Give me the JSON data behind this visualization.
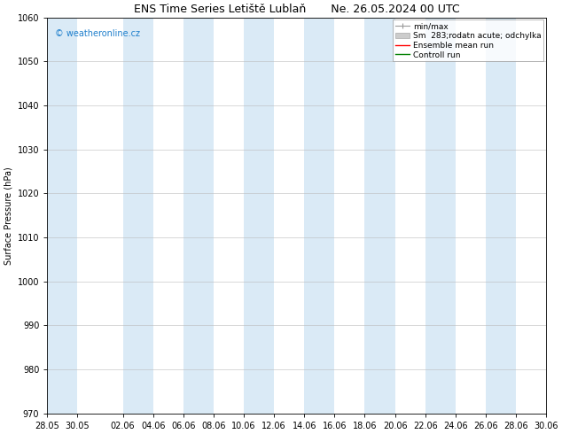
{
  "title": "ENS Time Series Letiště Lublaň       Ne. 26.05.2024 00 UTC",
  "ylabel": "Surface Pressure (hPa)",
  "ylim": [
    970,
    1060
  ],
  "yticks": [
    970,
    980,
    990,
    1000,
    1010,
    1020,
    1030,
    1040,
    1050,
    1060
  ],
  "xtick_labels": [
    "28.05",
    "30.05",
    "02.06",
    "04.06",
    "06.06",
    "08.06",
    "10.06",
    "12.06",
    "14.06",
    "16.06",
    "18.06",
    "20.06",
    "22.06",
    "24.06",
    "26.06",
    "28.06",
    "30.06"
  ],
  "xtick_positions": [
    0,
    2,
    5,
    7,
    9,
    11,
    13,
    15,
    17,
    19,
    21,
    23,
    25,
    27,
    29,
    31,
    33
  ],
  "shade_color": "#daeaf6",
  "bg_color": "#ffffff",
  "watermark": "© weatheronline.cz",
  "watermark_color": "#1e7fcc",
  "legend_entries": [
    "min/max",
    "Sm  283;rodatn acute; odchylka",
    "Ensemble mean run",
    "Controll run"
  ],
  "legend_colors": [
    "#aaaaaa",
    "#cccccc",
    "#ff0000",
    "#008000"
  ],
  "title_fontsize": 9,
  "label_fontsize": 7,
  "tick_fontsize": 7,
  "legend_fontsize": 6.5
}
